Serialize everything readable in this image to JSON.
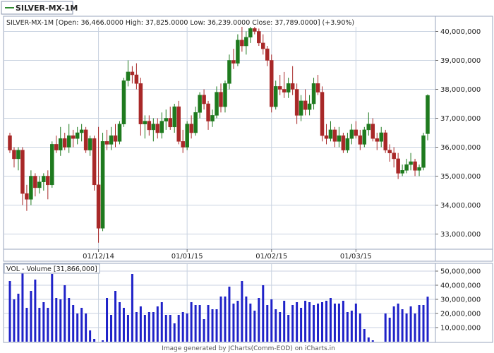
{
  "symbol_tab": {
    "label": "SILVER-MX-1M"
  },
  "price_panel": {
    "header": "SILVER-MX-1M [Open: 36,466.0000  High: 37,825.0000  Low: 36,239.0000  Close: 37,789.0000] (+3.90%)"
  },
  "volume_panel": {
    "header": "VOL - Volume [31,866,000]"
  },
  "footer": {
    "text": "Image generated by JCharts(Comm-EOD) on iCharts.in"
  },
  "colors": {
    "up": "#1e7a1e",
    "down": "#a82828",
    "volume": "#1f22c8",
    "grid": "#c8d2e0",
    "frame": "#9aa6bd",
    "tab_line": "#2e8b2e"
  },
  "chart_data": [
    {
      "type": "candlestick",
      "title": "SILVER-MX-1M",
      "ylim": [
        32500000,
        40500000
      ],
      "yticks": [
        33000000,
        34000000,
        35000000,
        36000000,
        37000000,
        38000000,
        39000000,
        40000000
      ],
      "ytick_labels": [
        "33,000,000",
        "34,000,000",
        "35,000,000",
        "36,000,000",
        "37,000,000",
        "38,000,000",
        "39,000,000",
        "40,000,000"
      ],
      "xtick_labels": [
        {
          "index": 21,
          "label": "01/12/14"
        },
        {
          "index": 42,
          "label": "01/01/15"
        },
        {
          "index": 62,
          "label": "01/02/15"
        },
        {
          "index": 82,
          "label": "01/03/15"
        }
      ],
      "grid": true,
      "candles": [
        [
          36400000,
          36500000,
          35800000,
          35900000
        ],
        [
          35900000,
          36000000,
          35300000,
          35600000
        ],
        [
          35600000,
          36000000,
          35200000,
          35900000
        ],
        [
          35900000,
          36000000,
          34000000,
          34400000
        ],
        [
          34400000,
          34700000,
          33800000,
          34200000
        ],
        [
          34200000,
          35200000,
          34000000,
          35000000
        ],
        [
          35000000,
          35100000,
          34300000,
          34600000
        ],
        [
          34600000,
          35000000,
          34400000,
          34800000
        ],
        [
          34800000,
          35100000,
          34500000,
          35000000
        ],
        [
          35000000,
          35200000,
          34200000,
          34700000
        ],
        [
          34700000,
          36200000,
          34600000,
          36100000
        ],
        [
          36100000,
          36400000,
          35800000,
          35900000
        ],
        [
          35900000,
          36700000,
          35700000,
          36300000
        ],
        [
          36300000,
          36500000,
          35900000,
          36000000
        ],
        [
          36000000,
          36800000,
          35800000,
          36400000
        ],
        [
          36400000,
          36600000,
          36000000,
          36300000
        ],
        [
          36300000,
          36700000,
          36100000,
          36500000
        ],
        [
          36500000,
          36800000,
          36200000,
          36600000
        ],
        [
          36600000,
          36700000,
          35800000,
          35900000
        ],
        [
          35900000,
          36400000,
          35700000,
          36300000
        ],
        [
          36300000,
          36400000,
          34500000,
          34700000
        ],
        [
          34700000,
          36700000,
          32700000,
          33200000
        ],
        [
          33200000,
          36500000,
          33100000,
          36200000
        ],
        [
          36200000,
          36600000,
          35900000,
          36100000
        ],
        [
          36100000,
          36700000,
          35900000,
          36400000
        ],
        [
          36400000,
          36800000,
          36000000,
          36200000
        ],
        [
          36200000,
          36900000,
          36100000,
          36800000
        ],
        [
          36800000,
          38400000,
          36700000,
          38300000
        ],
        [
          38300000,
          39000000,
          38100000,
          38600000
        ],
        [
          38600000,
          38800000,
          38200000,
          38500000
        ],
        [
          38500000,
          38900000,
          38000000,
          38200000
        ],
        [
          38200000,
          38400000,
          36400000,
          36800000
        ],
        [
          36800000,
          37100000,
          36300000,
          36900000
        ],
        [
          36900000,
          37100000,
          36400000,
          36600000
        ],
        [
          36600000,
          37000000,
          36200000,
          36800000
        ],
        [
          36800000,
          37000000,
          36300000,
          36500000
        ],
        [
          36500000,
          37200000,
          36300000,
          36900000
        ],
        [
          36900000,
          37300000,
          36600000,
          37000000
        ],
        [
          37000000,
          37400000,
          36600000,
          36700000
        ],
        [
          36700000,
          37500000,
          36500000,
          37400000
        ],
        [
          37400000,
          37600000,
          36100000,
          36200000
        ],
        [
          36200000,
          36600000,
          35800000,
          36000000
        ],
        [
          36000000,
          36900000,
          35900000,
          36800000
        ],
        [
          36800000,
          37100000,
          36300000,
          36500000
        ],
        [
          36500000,
          37400000,
          36400000,
          37200000
        ],
        [
          37200000,
          37900000,
          37000000,
          37800000
        ],
        [
          37800000,
          38000000,
          37300000,
          37500000
        ],
        [
          37500000,
          37600000,
          36600000,
          36900000
        ],
        [
          36900000,
          37300000,
          36700000,
          37100000
        ],
        [
          37100000,
          38100000,
          37000000,
          37900000
        ],
        [
          37900000,
          38200000,
          37200000,
          37400000
        ],
        [
          37400000,
          38300000,
          37200000,
          38200000
        ],
        [
          38200000,
          39200000,
          38000000,
          39000000
        ],
        [
          39000000,
          39400000,
          38700000,
          38900000
        ],
        [
          38900000,
          39900000,
          38800000,
          39700000
        ],
        [
          39700000,
          40200000,
          39300000,
          39500000
        ],
        [
          39500000,
          40000000,
          39200000,
          39800000
        ],
        [
          39800000,
          40400000,
          39600000,
          40100000
        ],
        [
          40100000,
          40500000,
          39900000,
          40000000
        ],
        [
          40000000,
          40100000,
          39500000,
          39600000
        ],
        [
          39600000,
          39900000,
          39200000,
          39400000
        ],
        [
          39400000,
          39500000,
          38800000,
          39000000
        ],
        [
          39000000,
          39200000,
          37200000,
          37400000
        ],
        [
          37400000,
          38300000,
          37300000,
          38100000
        ],
        [
          38100000,
          38500000,
          37800000,
          38000000
        ],
        [
          38000000,
          38600000,
          37700000,
          37900000
        ],
        [
          37900000,
          38400000,
          37700000,
          38200000
        ],
        [
          38200000,
          38800000,
          37800000,
          38000000
        ],
        [
          38000000,
          38200000,
          36800000,
          37100000
        ],
        [
          37100000,
          37800000,
          36900000,
          37600000
        ],
        [
          37600000,
          38000000,
          37100000,
          37300000
        ],
        [
          37300000,
          37800000,
          37100000,
          37500000
        ],
        [
          37500000,
          38400000,
          37300000,
          38200000
        ],
        [
          38200000,
          38500000,
          37800000,
          37900000
        ],
        [
          37900000,
          38100000,
          36200000,
          36400000
        ],
        [
          36400000,
          36800000,
          36100000,
          36300000
        ],
        [
          36300000,
          36900000,
          36200000,
          36600000
        ],
        [
          36600000,
          36700000,
          36000000,
          36200000
        ],
        [
          36200000,
          36700000,
          36000000,
          36400000
        ],
        [
          36400000,
          36500000,
          35800000,
          35900000
        ],
        [
          35900000,
          36500000,
          35800000,
          36300000
        ],
        [
          36300000,
          36800000,
          36100000,
          36600000
        ],
        [
          36600000,
          36900000,
          36300000,
          36400000
        ],
        [
          36400000,
          36600000,
          35900000,
          36100000
        ],
        [
          36100000,
          36700000,
          36000000,
          36600000
        ],
        [
          36600000,
          37200000,
          36400000,
          36800000
        ],
        [
          36800000,
          37000000,
          36200000,
          36300000
        ],
        [
          36300000,
          36500000,
          35900000,
          36200000
        ],
        [
          36200000,
          36700000,
          36000000,
          36500000
        ],
        [
          36500000,
          36600000,
          35800000,
          35900000
        ],
        [
          35900000,
          36100000,
          35500000,
          35800000
        ],
        [
          35800000,
          36000000,
          35300000,
          35600000
        ],
        [
          35600000,
          35800000,
          34900000,
          35100000
        ],
        [
          35100000,
          35400000,
          35000000,
          35200000
        ],
        [
          35200000,
          35600000,
          35100000,
          35400000
        ],
        [
          35400000,
          35800000,
          35200000,
          35500000
        ],
        [
          35500000,
          35600000,
          35000000,
          35200000
        ],
        [
          35200000,
          35400000,
          35000000,
          35300000
        ],
        [
          35300000,
          36500000,
          35200000,
          36400000
        ],
        [
          36466000,
          37825000,
          36239000,
          37789000
        ]
      ]
    },
    {
      "type": "bar",
      "title": "VOL - Volume",
      "ylim": [
        0,
        55000000
      ],
      "yticks": [
        10000000,
        20000000,
        30000000,
        40000000,
        50000000
      ],
      "ytick_labels": [
        "10,000,000",
        "20,000,000",
        "30,000,000",
        "40,000,000",
        "50,000,000"
      ],
      "grid": true,
      "values": [
        43000000,
        30000000,
        34000000,
        51000000,
        24000000,
        36000000,
        44000000,
        24000000,
        28000000,
        24000000,
        48000000,
        31000000,
        30000000,
        40000000,
        31000000,
        26000000,
        20000000,
        24000000,
        20000000,
        8000000,
        2000000,
        0,
        1000000,
        31000000,
        19000000,
        36000000,
        28000000,
        24000000,
        19000000,
        48000000,
        21000000,
        25000000,
        19000000,
        21000000,
        21000000,
        25000000,
        28000000,
        19000000,
        19000000,
        13000000,
        19000000,
        21000000,
        20000000,
        28000000,
        26000000,
        26000000,
        16000000,
        26000000,
        23000000,
        23000000,
        32000000,
        32000000,
        39000000,
        27000000,
        29000000,
        43000000,
        32000000,
        27000000,
        22000000,
        31000000,
        40000000,
        26000000,
        30000000,
        23000000,
        21000000,
        29000000,
        19000000,
        26000000,
        28000000,
        24000000,
        29000000,
        28000000,
        26000000,
        27000000,
        28000000,
        29000000,
        31000000,
        27000000,
        27000000,
        29000000,
        21000000,
        22000000,
        27000000,
        20000000,
        9000000,
        3000000,
        1000000,
        0,
        0,
        20000000,
        17000000,
        25000000,
        27000000,
        23000000,
        20000000,
        25000000,
        20000000,
        26000000,
        26000000,
        31866000
      ]
    }
  ]
}
